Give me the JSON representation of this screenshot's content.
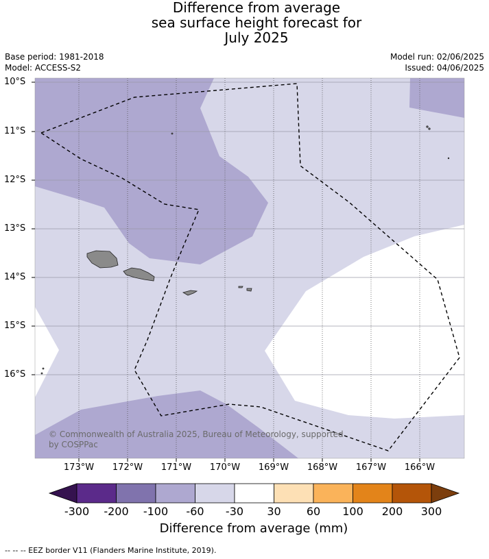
{
  "title_lines": [
    "Difference from average",
    "sea surface height forecast for",
    "July 2025"
  ],
  "base_period": "Base period: 1981-2018",
  "model": "Model: ACCESS-S2",
  "model_run": "Model run: 02/06/2025",
  "issued": "Issued: 04/06/2025",
  "copyright_lines": [
    "© Commonwealth of Australia 2025, Bureau of Meteorology, supported",
    "by COSPPac"
  ],
  "colorbar": {
    "title": "Difference from average (mm)",
    "tick_labels": [
      "-300",
      "-200",
      "-100",
      "-60",
      "-30",
      "30",
      "60",
      "100",
      "200",
      "300"
    ],
    "colors": [
      "#35124f",
      "#5b2a8a",
      "#8073ad",
      "#aea8d0",
      "#d7d7e9",
      "#ffffff",
      "#fde0b5",
      "#fab35a",
      "#e3841a",
      "#b45509",
      "#7c3e0d"
    ]
  },
  "map": {
    "lat_labels": [
      "10°S",
      "11°S",
      "12°S",
      "13°S",
      "14°S",
      "15°S",
      "16°S"
    ],
    "lon_labels": [
      "173°W",
      "172°W",
      "171°W",
      "170°W",
      "169°W",
      "168°W",
      "167°W",
      "166°W"
    ],
    "fill_colors": {
      "light": "#d7d7e9",
      "medium": "#aea8d0",
      "land": "#8a8a8a"
    }
  },
  "footnote": "--  --  -- EEZ border V11 (Flanders Marine Institute, 2019)."
}
